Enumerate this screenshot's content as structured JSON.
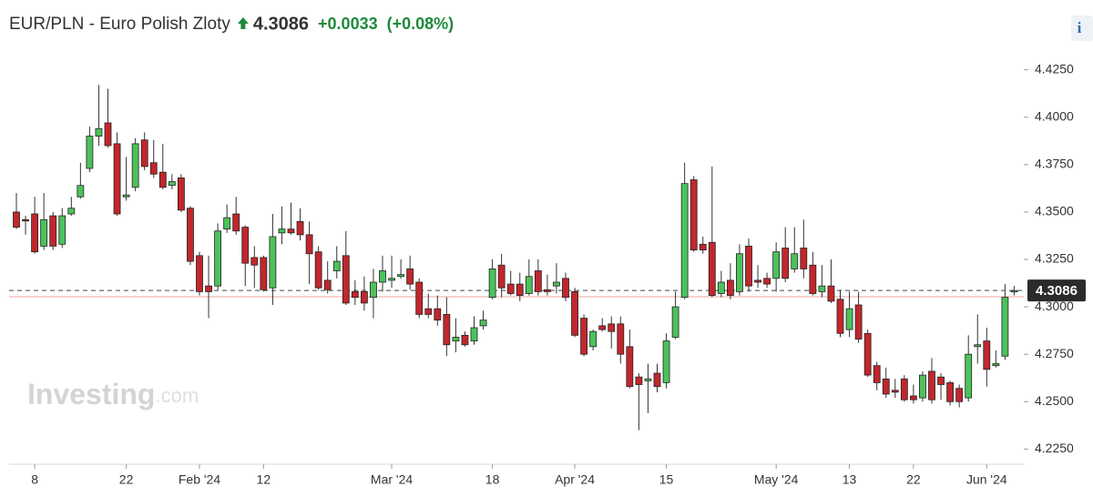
{
  "chart_data": {
    "type": "candlestick",
    "title": "EUR/PLN - Euro Polish Zloty",
    "last_price": 4.3086,
    "change": "+0.0033",
    "change_percent": "(+0.08%)",
    "previous_close": 4.3053,
    "info_icon": "i",
    "watermark": {
      "brand": "Investing",
      "suffix": ".com"
    },
    "up_color": "#4cc25a",
    "down_color": "#c1272d",
    "ylim": [
      4.217,
      4.433
    ],
    "yticks": [
      {
        "value": 4.225,
        "label": "4.2250"
      },
      {
        "value": 4.25,
        "label": "4.2500"
      },
      {
        "value": 4.275,
        "label": "4.2750"
      },
      {
        "value": 4.3,
        "label": "4.3000"
      },
      {
        "value": 4.325,
        "label": "4.3250"
      },
      {
        "value": 4.35,
        "label": "4.3500"
      },
      {
        "value": 4.375,
        "label": "4.3750"
      },
      {
        "value": 4.4,
        "label": "4.4000"
      },
      {
        "value": 4.425,
        "label": "4.4250"
      }
    ],
    "grid": false,
    "categories": [
      null,
      null,
      "8",
      null,
      null,
      null,
      null,
      null,
      null,
      null,
      null,
      null,
      "22",
      null,
      null,
      null,
      null,
      null,
      null,
      null,
      "Feb '24",
      null,
      null,
      null,
      null,
      null,
      null,
      "12",
      null,
      null,
      null,
      null,
      null,
      null,
      null,
      null,
      null,
      null,
      null,
      null,
      null,
      "Mar '24",
      null,
      null,
      null,
      null,
      null,
      null,
      null,
      null,
      null,
      null,
      "18",
      null,
      null,
      null,
      null,
      null,
      null,
      null,
      null,
      "Apr '24",
      null,
      null,
      null,
      null,
      null,
      null,
      null,
      null,
      null,
      "15",
      null,
      null,
      null,
      null,
      null,
      null,
      null,
      null,
      null,
      null,
      null,
      "May '24",
      null,
      null,
      null,
      null,
      null,
      null,
      null,
      "13",
      null,
      null,
      null,
      null,
      null,
      null,
      "22",
      null,
      null,
      null,
      null,
      null,
      null,
      null,
      "Jun '24",
      null,
      null,
      null
    ],
    "open": [
      4.35,
      4.346,
      4.349,
      4.332,
      4.348,
      4.333,
      4.349,
      4.358,
      4.373,
      4.39,
      4.397,
      4.386,
      4.358,
      4.363,
      4.388,
      4.376,
      4.371,
      4.364,
      4.368,
      4.352,
      4.327,
      4.311,
      4.311,
      4.341,
      4.349,
      4.342,
      4.326,
      4.326,
      4.31,
      4.339,
      4.341,
      4.345,
      4.338,
      4.329,
      4.314,
      4.319,
      4.327,
      4.308,
      4.308,
      4.305,
      4.313,
      4.314,
      4.316,
      4.32,
      4.313,
      4.299,
      4.299,
      4.296,
      4.282,
      4.285,
      4.282,
      4.29,
      4.305,
      4.322,
      4.312,
      4.312,
      4.307,
      4.319,
      4.309,
      4.311,
      4.315,
      4.308,
      4.294,
      4.279,
      4.29,
      4.291,
      4.291,
      4.279,
      4.263,
      4.261,
      4.265,
      4.26,
      4.284,
      4.305,
      4.367,
      4.333,
      4.334,
      4.307,
      4.314,
      4.308,
      4.332,
      4.314,
      4.315,
      4.315,
      4.331,
      4.32,
      4.331,
      4.322,
      4.308,
      4.311,
      4.304,
      4.288,
      4.301,
      4.286,
      4.269,
      4.262,
      4.256,
      4.262,
      4.253,
      4.252,
      4.266,
      4.263,
      4.26,
      4.257,
      4.252,
      4.279,
      4.282,
      4.269,
      4.274,
      4.308
    ],
    "high": [
      4.36,
      4.348,
      4.358,
      4.36,
      4.35,
      4.352,
      4.358,
      4.376,
      4.395,
      4.417,
      4.415,
      4.392,
      4.379,
      4.389,
      4.392,
      4.388,
      4.386,
      4.37,
      4.37,
      4.353,
      4.329,
      4.327,
      4.344,
      4.354,
      4.358,
      4.343,
      4.332,
      4.327,
      4.349,
      4.353,
      4.355,
      4.352,
      4.345,
      4.332,
      4.324,
      4.332,
      4.34,
      4.314,
      4.316,
      4.32,
      4.327,
      4.327,
      4.325,
      4.327,
      4.315,
      4.307,
      4.306,
      4.305,
      4.294,
      4.287,
      4.295,
      4.298,
      4.325,
      4.328,
      4.319,
      4.318,
      4.325,
      4.325,
      4.317,
      4.323,
      4.318,
      4.31,
      4.296,
      4.288,
      4.294,
      4.295,
      4.295,
      4.288,
      4.265,
      4.27,
      4.27,
      4.286,
      4.308,
      4.376,
      4.369,
      4.337,
      4.374,
      4.319,
      4.323,
      4.333,
      4.336,
      4.322,
      4.318,
      4.334,
      4.342,
      4.342,
      4.346,
      4.329,
      4.322,
      4.325,
      4.309,
      4.308,
      4.308,
      4.288,
      4.271,
      4.268,
      4.262,
      4.264,
      4.259,
      4.266,
      4.273,
      4.265,
      4.261,
      4.259,
      4.285,
      4.296,
      4.289,
      4.277,
      4.312,
      4.311
    ],
    "low": [
      4.341,
      4.338,
      4.328,
      4.33,
      4.33,
      4.331,
      4.348,
      4.357,
      4.371,
      4.385,
      4.384,
      4.348,
      4.356,
      4.361,
      4.372,
      4.368,
      4.362,
      4.362,
      4.35,
      4.322,
      4.306,
      4.294,
      4.309,
      4.339,
      4.338,
      4.311,
      4.31,
      4.308,
      4.301,
      4.333,
      4.338,
      4.335,
      4.312,
      4.309,
      4.307,
      4.315,
      4.301,
      4.301,
      4.298,
      4.294,
      4.308,
      4.31,
      4.315,
      4.309,
      4.294,
      4.294,
      4.29,
      4.274,
      4.276,
      4.279,
      4.28,
      4.288,
      4.304,
      4.305,
      4.306,
      4.303,
      4.306,
      4.306,
      4.306,
      4.307,
      4.303,
      4.284,
      4.274,
      4.277,
      4.287,
      4.278,
      4.27,
      4.257,
      4.235,
      4.244,
      4.255,
      4.257,
      4.283,
      4.304,
      4.329,
      4.328,
      4.305,
      4.305,
      4.304,
      4.306,
      4.308,
      4.31,
      4.31,
      4.308,
      4.313,
      4.318,
      4.315,
      4.306,
      4.305,
      4.302,
      4.284,
      4.284,
      4.281,
      4.263,
      4.256,
      4.252,
      4.252,
      4.25,
      4.249,
      4.25,
      4.249,
      4.251,
      4.248,
      4.247,
      4.25,
      4.27,
      4.258,
      4.268,
      4.272,
      4.306
    ],
    "close": [
      4.342,
      4.3455,
      4.329,
      4.346,
      4.332,
      4.348,
      4.352,
      4.364,
      4.39,
      4.394,
      4.385,
      4.349,
      4.359,
      4.386,
      4.374,
      4.37,
      4.363,
      4.366,
      4.351,
      4.324,
      4.308,
      4.308,
      4.34,
      4.347,
      4.34,
      4.323,
      4.322,
      4.309,
      4.337,
      4.341,
      4.339,
      4.338,
      4.328,
      4.31,
      4.309,
      4.324,
      4.302,
      4.305,
      4.302,
      4.313,
      4.319,
      4.315,
      4.317,
      4.312,
      4.296,
      4.296,
      4.293,
      4.28,
      4.284,
      4.28,
      4.289,
      4.293,
      4.32,
      4.31,
      4.307,
      4.306,
      4.316,
      4.308,
      4.308,
      4.313,
      4.305,
      4.285,
      4.275,
      4.287,
      4.288,
      4.287,
      4.275,
      4.258,
      4.259,
      4.262,
      4.258,
      4.282,
      4.3,
      4.365,
      4.33,
      4.33,
      4.306,
      4.313,
      4.306,
      4.328,
      4.311,
      4.313,
      4.312,
      4.329,
      4.315,
      4.328,
      4.32,
      4.307,
      4.311,
      4.303,
      4.286,
      4.299,
      4.283,
      4.264,
      4.26,
      4.254,
      4.255,
      4.251,
      4.251,
      4.264,
      4.251,
      4.259,
      4.25,
      4.25,
      4.275,
      4.28,
      4.267,
      4.27,
      4.305,
      4.3086
    ]
  }
}
